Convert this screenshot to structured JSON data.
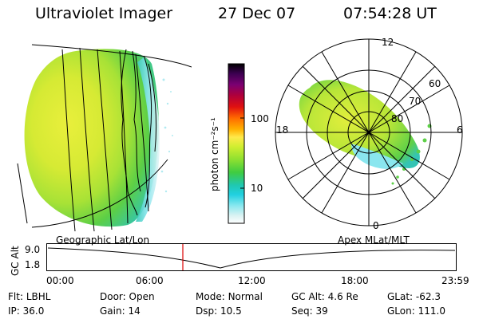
{
  "header": {
    "title": "Ultraviolet Imager",
    "date": "27 Dec 07",
    "time": "07:54:28 UT"
  },
  "colorbar": {
    "label": "photon cm⁻²s⁻¹",
    "ticks": [
      "100",
      "10"
    ],
    "colors": [
      "#000000",
      "#3a0050",
      "#7a0072",
      "#b0003a",
      "#e01010",
      "#ff6a00",
      "#ffb000",
      "#ffe94a",
      "#d0ee30",
      "#8ee030",
      "#40cc40",
      "#20c8b0",
      "#20d0e0",
      "#8ae8ef",
      "#d8f2f2",
      "#ffffff"
    ]
  },
  "globe_panel": {
    "caption": "Geographic Lat/Lon"
  },
  "polar_panel": {
    "caption": "Apex MLat/MLT",
    "mlt_labels": {
      "top": "12",
      "left": "18",
      "right": "6",
      "bottom": "0"
    },
    "lat_labels": [
      "60",
      "70",
      "80"
    ]
  },
  "altitude_plot": {
    "ylabel": "GC Alt",
    "yticks": [
      "9.0",
      "1.8"
    ],
    "xticks": [
      "00:00",
      "06:00",
      "12:00",
      "18:00",
      "23:59"
    ],
    "marker_color": "#dd0000"
  },
  "status": {
    "row1": [
      {
        "label": "Flt:",
        "value": "LBHL"
      },
      {
        "label": "Door:",
        "value": "Open"
      },
      {
        "label": "Mode:",
        "value": "Normal"
      },
      {
        "label": "GC Alt:",
        "value": "4.6 Re"
      },
      {
        "label": "GLat:",
        "value": "-62.3"
      }
    ],
    "row2": [
      {
        "label": "IP:",
        "value": "36.0"
      },
      {
        "label": "Gain:",
        "value": "14"
      },
      {
        "label": "Dsp:",
        "value": "10.5"
      },
      {
        "label": "Seq:",
        "value": "39"
      },
      {
        "label": "GLon:",
        "value": "111.0"
      }
    ]
  }
}
